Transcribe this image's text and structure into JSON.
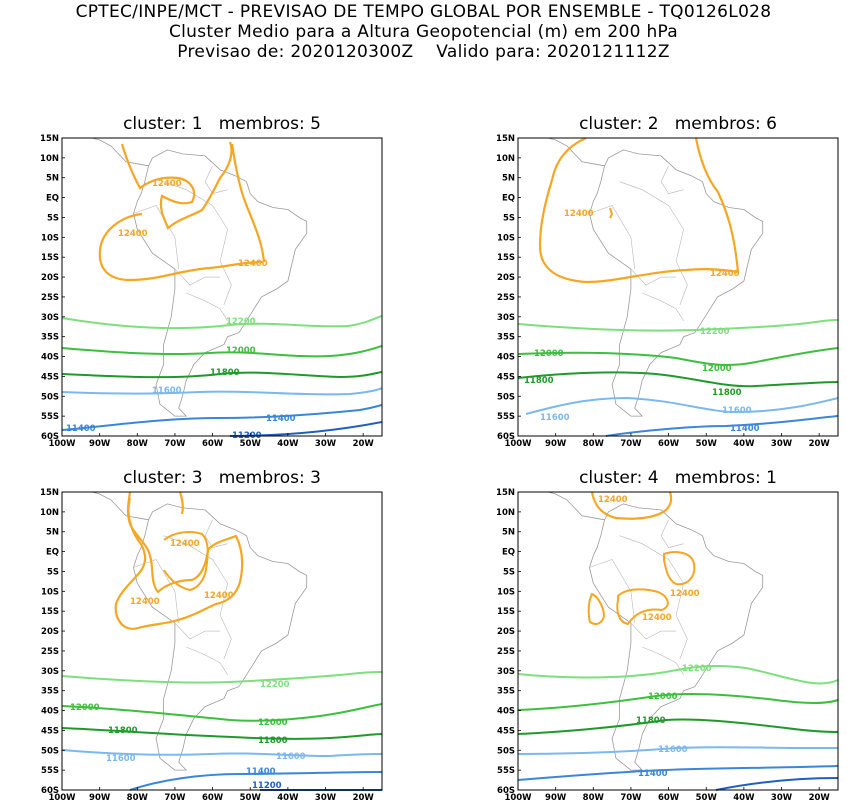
{
  "header": {
    "line1": "CPTEC/INPE/MCT - PREVISAO DE TEMPO GLOBAL POR ENSEMBLE - TQ0126L028",
    "line2": "Cluster Medio para a Altura Geopotencial (m) em 200 hPa",
    "line3": "Previsao de: 2020120300Z    Valido para: 2020121112Z"
  },
  "axes": {
    "lat_labels": [
      "15N",
      "10N",
      "5N",
      "EQ",
      "5S",
      "10S",
      "15S",
      "20S",
      "25S",
      "30S",
      "35S",
      "40S",
      "45S",
      "50S",
      "55S",
      "60S"
    ],
    "lon_labels": [
      "100W",
      "90W",
      "80W",
      "70W",
      "60W",
      "50W",
      "40W",
      "30W",
      "20W"
    ]
  },
  "colors": {
    "c12400": "#f5a623",
    "c12200": "#7de07d",
    "c12000": "#3cbf3c",
    "c11800": "#1f9a2a",
    "c11600": "#7ab8f0",
    "c11400": "#3a86d8",
    "c11200": "#1f5fc0"
  },
  "panels": [
    {
      "title": "cluster: 1   membros: 5",
      "labels": [
        "12400",
        "12400",
        "12400",
        "12200",
        "12000",
        "11800",
        "11600",
        "11400",
        "11400",
        "11200"
      ]
    },
    {
      "title": "cluster: 2   membros: 6",
      "labels": [
        "12400",
        "12400",
        "12200",
        "12000",
        "12000",
        "11800",
        "11800",
        "11600",
        "11600",
        "11400"
      ]
    },
    {
      "title": "cluster: 3   membros: 3",
      "labels": [
        "12400",
        "12400",
        "12400",
        "12200",
        "12000",
        "12000",
        "11800",
        "11800",
        "11600",
        "11600",
        "11400",
        "11200"
      ]
    },
    {
      "title": "cluster: 4   membros: 1",
      "labels": [
        "12400",
        "12400",
        "12400",
        "12200",
        "12000",
        "11800",
        "11600",
        "11400"
      ]
    }
  ]
}
